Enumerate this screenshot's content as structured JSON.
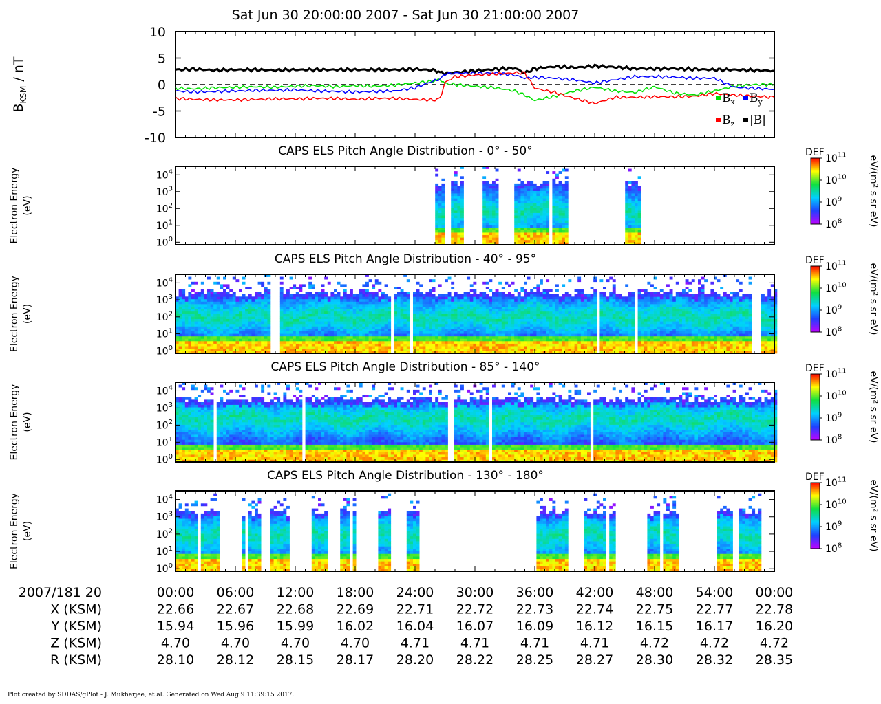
{
  "header": {
    "title": "Sat Jun 30 20:00:00 2007 - Sat Jun 30 21:00:00 2007"
  },
  "footer": {
    "text": "Plot created by SDDAS/gPlot - J. Mukherjee, et al.  Generated on Wed Aug 9 11:39:15 2017."
  },
  "chart_data": [
    {
      "type": "line",
      "ylabel_main": "B",
      "ylabel_sub": "KSM",
      "ylabel_unit": "/ nT",
      "ylim": [
        -10,
        10
      ],
      "yticks": [
        "10",
        "5",
        "0",
        "-5",
        "-10"
      ],
      "zero_line": "dashed",
      "legend": [
        {
          "key": "bx",
          "main": "B",
          "sub": "x",
          "color": "#00e000"
        },
        {
          "key": "by",
          "main": "B",
          "sub": "y",
          "color": "#0000ff"
        },
        {
          "key": "bz",
          "main": "B",
          "sub": "z",
          "color": "#ff0000"
        },
        {
          "key": "bmag",
          "main": "|B|",
          "sub": "",
          "color": "#000000"
        }
      ],
      "x_minutes": [
        0,
        2,
        4,
        6,
        8,
        10,
        12,
        14,
        16,
        18,
        20,
        22,
        24,
        26,
        26.5,
        27,
        28,
        30,
        32,
        34,
        35,
        36,
        38,
        40,
        42,
        44,
        46,
        48,
        50,
        52,
        54,
        56,
        58,
        60
      ],
      "series": [
        {
          "key": "bmag",
          "values": [
            2.8,
            2.9,
            2.7,
            2.8,
            2.8,
            2.7,
            2.8,
            2.8,
            2.8,
            2.8,
            2.8,
            2.8,
            2.9,
            2.7,
            2.3,
            2.1,
            2.3,
            2.6,
            2.9,
            3.1,
            2.2,
            3.0,
            3.4,
            3.2,
            3.5,
            3.3,
            3.0,
            3.0,
            3.0,
            2.9,
            2.8,
            2.8,
            2.7,
            2.6
          ]
        },
        {
          "key": "bx",
          "values": [
            -0.7,
            -0.8,
            -0.6,
            -0.5,
            -0.4,
            -0.5,
            -0.3,
            -0.2,
            -0.4,
            -0.2,
            -0.3,
            -0.1,
            0.3,
            0.7,
            1.0,
            0.2,
            0.0,
            -0.3,
            -0.6,
            -1.2,
            -2.0,
            -3.0,
            -2.2,
            -1.2,
            -0.5,
            -1.2,
            -1.5,
            -0.4,
            -1.6,
            -2.0,
            -1.2,
            -0.3,
            0.0,
            0.0
          ]
        },
        {
          "key": "by",
          "values": [
            -1.2,
            -1.4,
            -1.3,
            -1.2,
            -1.1,
            -1.1,
            -1.0,
            -1.2,
            -1.3,
            -1.4,
            -1.3,
            -1.2,
            -0.6,
            0.8,
            1.0,
            2.0,
            2.2,
            2.1,
            2.2,
            1.8,
            1.2,
            1.4,
            1.2,
            0.9,
            0.3,
            0.9,
            1.5,
            1.5,
            1.4,
            1.2,
            1.2,
            -0.5,
            -0.7,
            -0.9
          ]
        },
        {
          "key": "bz",
          "values": [
            -2.6,
            -2.8,
            -2.9,
            -2.9,
            -2.8,
            -2.7,
            -2.7,
            -2.6,
            -2.6,
            -2.8,
            -2.6,
            -2.6,
            -2.8,
            -2.9,
            -2.6,
            0.4,
            1.5,
            1.8,
            2.0,
            2.2,
            2.2,
            -0.7,
            -1.5,
            -2.6,
            -3.6,
            -2.4,
            -2.4,
            -2.3,
            -2.3,
            -2.2,
            -1.7,
            -2.0,
            -2.2,
            -2.4
          ]
        }
      ]
    },
    {
      "type": "heatmap",
      "title": "CAPS ELS Pitch Angle Distribution - 0° - 50°",
      "ylabel": "Electron Energy",
      "yunit": "(eV)",
      "yticks_exp": [
        "4",
        "3",
        "2",
        "1",
        "0"
      ],
      "colorbar": {
        "label": "DEF",
        "unit": "eV/(m² s sr eV)",
        "ticks_exp": [
          "11",
          "10",
          "9",
          "8"
        ]
      },
      "segments": [
        [
          25.7,
          26.7
        ],
        [
          27.3,
          28.8
        ],
        [
          30.7,
          32.3
        ],
        [
          33.7,
          35.4
        ],
        [
          35.4,
          37.4
        ],
        [
          37.6,
          39.3
        ],
        [
          45.0,
          46.4
        ]
      ],
      "vmax_log_eV": 3.5,
      "peak_log_eV": 1.8
    },
    {
      "type": "heatmap",
      "title": "CAPS ELS Pitch Angle Distribution - 40° - 95°",
      "ylabel": "Electron Energy",
      "yunit": "(eV)",
      "yticks_exp": [
        "4",
        "3",
        "2",
        "1",
        "0"
      ],
      "colorbar": {
        "label": "DEF",
        "unit": "eV/(m² s sr eV)",
        "ticks_exp": [
          "11",
          "10",
          "9",
          "8"
        ]
      },
      "segments": [
        [
          0,
          9.5
        ],
        [
          10.3,
          10.8
        ],
        [
          11.0,
          21.5
        ],
        [
          21.7,
          23.4
        ],
        [
          23.6,
          42.0
        ],
        [
          42.5,
          57.5
        ],
        [
          58.5,
          60
        ]
      ],
      "vmax_log_eV": 3.4,
      "peak_log_eV": 2.0
    },
    {
      "type": "heatmap",
      "title": "CAPS ELS Pitch Angle Distribution - 85° - 140°",
      "ylabel": "Electron Energy",
      "yunit": "(eV)",
      "yticks_exp": [
        "4",
        "3",
        "2",
        "1",
        "0"
      ],
      "colorbar": {
        "label": "DEF",
        "unit": "eV/(m² s sr eV)",
        "ticks_exp": [
          "11",
          "10",
          "9",
          "8"
        ]
      },
      "segments": [
        [
          0,
          27.1
        ],
        [
          27.7,
          60
        ]
      ],
      "vmax_log_eV": 3.5,
      "peak_log_eV": 2.4
    },
    {
      "type": "heatmap",
      "title": "CAPS ELS Pitch Angle Distribution - 130° - 180°",
      "ylabel": "Electron Energy",
      "yunit": "(eV)",
      "yticks_exp": [
        "4",
        "3",
        "2",
        "1",
        "0"
      ],
      "colorbar": {
        "label": "DEF",
        "unit": "eV/(m² s sr eV)",
        "ticks_exp": [
          "11",
          "10",
          "9",
          "8"
        ]
      },
      "segments": [
        [
          0,
          1.6
        ],
        [
          1.9,
          2.1
        ],
        [
          2.3,
          4.2
        ],
        [
          6.6,
          8.5
        ],
        [
          9.4,
          11.2
        ],
        [
          13.6,
          15.2
        ],
        [
          16.3,
          18.0
        ],
        [
          20.0,
          21.5
        ],
        [
          23.0,
          24.3
        ],
        [
          35.8,
          39.2
        ],
        [
          40.8,
          44.0
        ],
        [
          47.0,
          50.4
        ],
        [
          54.2,
          55.7
        ],
        [
          56.2,
          58.4
        ]
      ],
      "vmax_log_eV": 3.3,
      "peak_log_eV": 2.0
    }
  ],
  "axis_rows": [
    {
      "label": "2007/181 20",
      "values": [
        "00:00",
        "06:00",
        "12:00",
        "18:00",
        "24:00",
        "30:00",
        "36:00",
        "42:00",
        "48:00",
        "54:00",
        "00:00"
      ]
    },
    {
      "label": "X (KSM)",
      "values": [
        "22.66",
        "22.67",
        "22.68",
        "22.69",
        "22.71",
        "22.72",
        "22.73",
        "22.74",
        "22.75",
        "22.77",
        "22.78"
      ]
    },
    {
      "label": "Y (KSM)",
      "values": [
        "15.94",
        "15.96",
        "15.99",
        "16.02",
        "16.04",
        "16.07",
        "16.09",
        "16.12",
        "16.15",
        "16.17",
        "16.20"
      ]
    },
    {
      "label": "Z (KSM)",
      "values": [
        "4.70",
        "4.70",
        "4.70",
        "4.70",
        "4.71",
        "4.71",
        "4.71",
        "4.71",
        "4.72",
        "4.72",
        "4.72"
      ]
    },
    {
      "label": "R (KSM)",
      "values": [
        "28.10",
        "28.12",
        "28.15",
        "28.17",
        "28.20",
        "28.22",
        "28.25",
        "28.27",
        "28.30",
        "28.32",
        "28.35"
      ]
    }
  ]
}
